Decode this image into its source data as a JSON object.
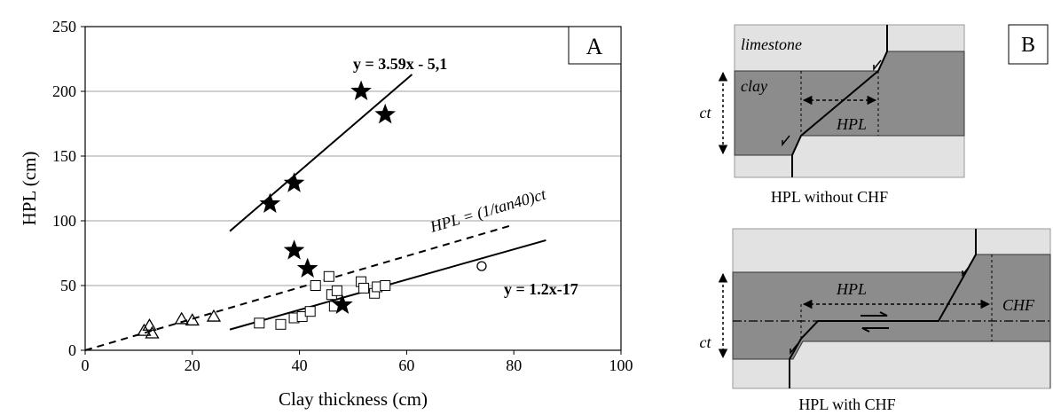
{
  "chart_data": {
    "type": "scatter",
    "panel": "A",
    "xlabel": "Clay thickness (cm)",
    "ylabel": "HPL (cm)",
    "xlim": [
      0,
      100
    ],
    "xticks": [
      0,
      20,
      40,
      60,
      80,
      100
    ],
    "ylim": [
      0,
      250
    ],
    "yticks": [
      0,
      50,
      100,
      150,
      200,
      250
    ],
    "grid": true,
    "series": [
      {
        "marker": "star",
        "color": "#000000",
        "x": [
          34.5,
          39,
          51.5,
          56,
          39,
          41.5,
          48
        ],
        "values": [
          113,
          129,
          200,
          182,
          77,
          63,
          35
        ]
      },
      {
        "marker": "square",
        "color": "#000000",
        "x": [
          32.5,
          36.5,
          39,
          40.5,
          42,
          43,
          45.5,
          46,
          46.5,
          47,
          51.5,
          52,
          54,
          54.5,
          56
        ],
        "values": [
          21,
          20,
          25,
          26,
          30,
          50,
          57,
          43,
          34,
          46,
          53,
          48,
          44,
          49,
          50
        ]
      },
      {
        "marker": "triangle",
        "color": "#000000",
        "x": [
          11,
          12,
          12.5,
          18,
          20,
          24
        ],
        "values": [
          15,
          19,
          13,
          24,
          23,
          26
        ]
      },
      {
        "marker": "circle",
        "color": "#000000",
        "x": [
          74
        ],
        "values": [
          65
        ]
      }
    ],
    "lines": [
      {
        "style": "solid",
        "label": "y = 3.59x - 5,1",
        "x": [
          27,
          61
        ],
        "y": [
          92,
          213
        ]
      },
      {
        "style": "solid",
        "label": "y = 1.2x-17",
        "x": [
          27,
          86
        ],
        "y": [
          16,
          85
        ]
      },
      {
        "style": "dashed",
        "label": "HPL = (1/tan40)ct",
        "x": [
          0,
          80
        ],
        "y": [
          0,
          97
        ]
      }
    ]
  },
  "diagram": {
    "label": "B",
    "top": {
      "limestone": "limestone",
      "clay": "clay",
      "ct": "ct",
      "hpl": "HPL",
      "caption": "HPL without CHF"
    },
    "bottom": {
      "ct": "ct",
      "hpl": "HPL",
      "chf": "CHF",
      "caption": "HPL with CHF"
    }
  }
}
